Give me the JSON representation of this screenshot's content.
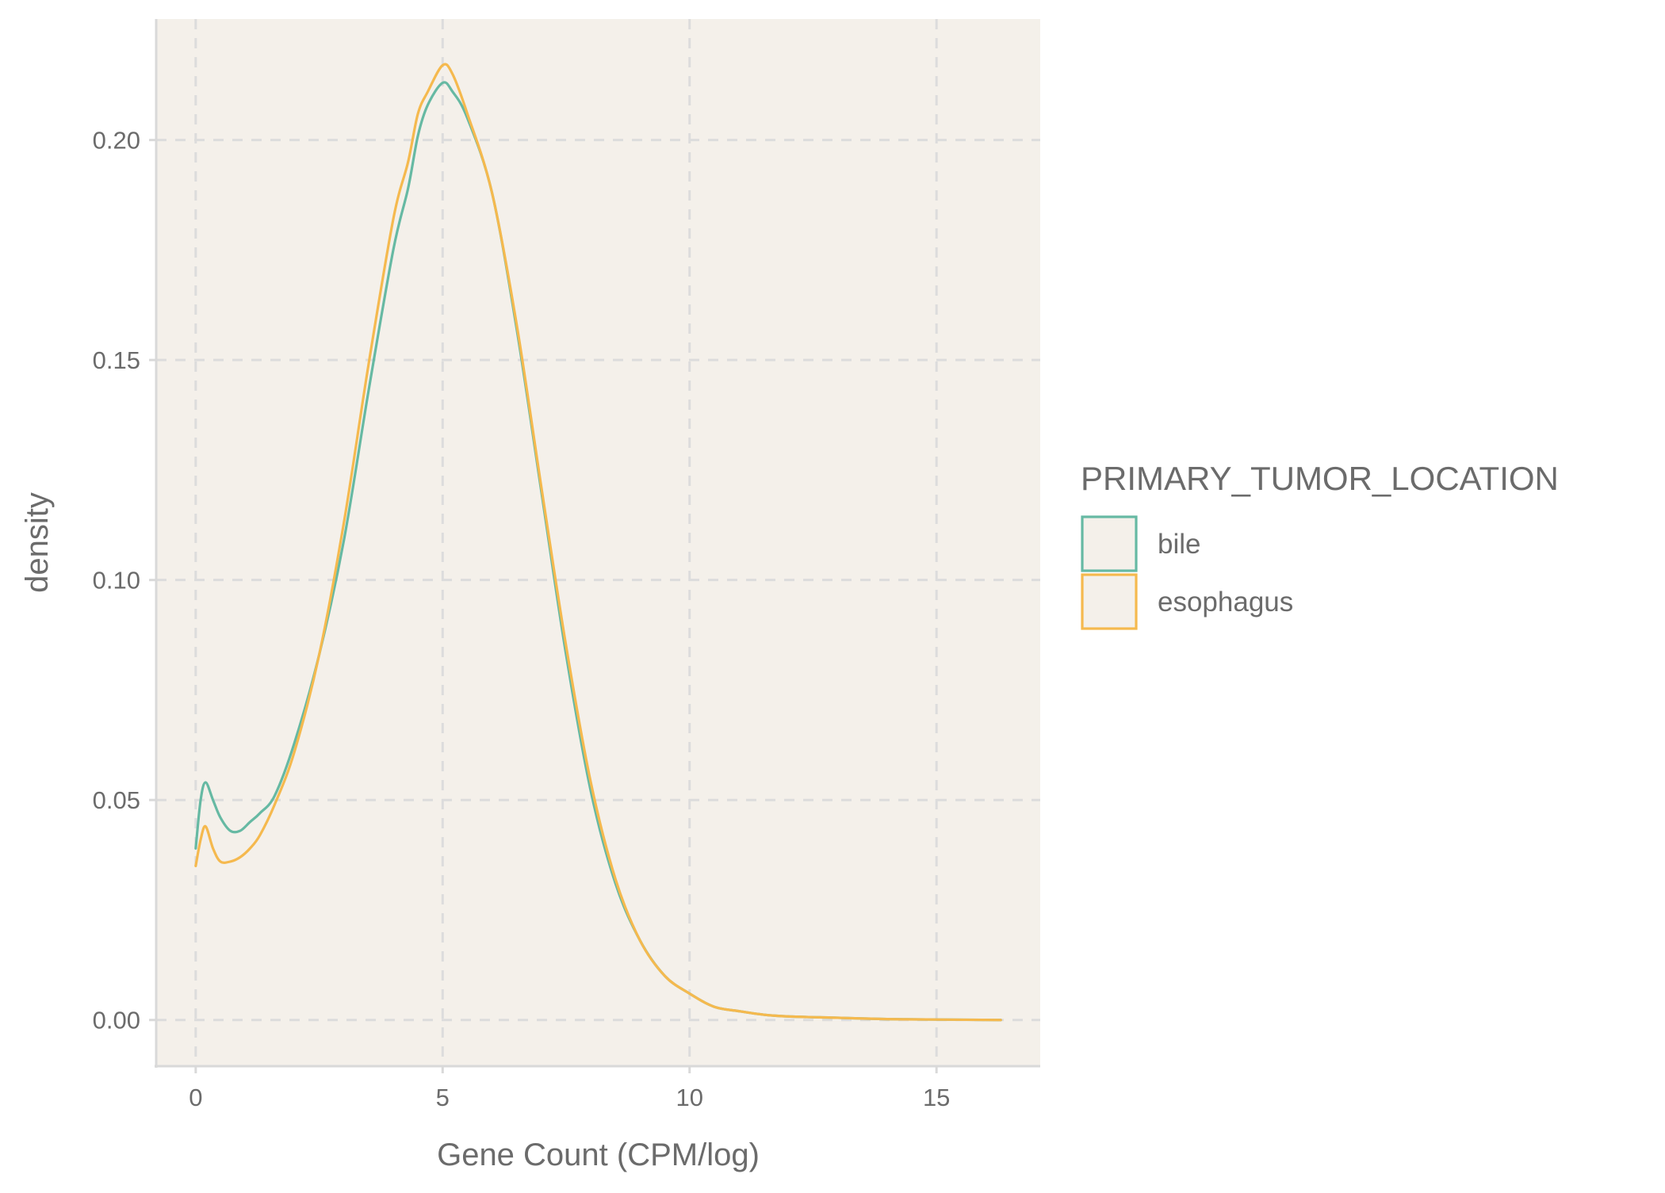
{
  "chart_data": {
    "type": "line",
    "subtype": "density",
    "title": "",
    "xlabel": "Gene Count (CPM/log)",
    "ylabel": "density",
    "xlim": [
      -0.8,
      17.1
    ],
    "ylim": [
      -0.0105,
      0.2275
    ],
    "x_ticks": [
      0,
      5,
      10,
      15
    ],
    "x_tick_labels": [
      "0",
      "5",
      "10",
      "15"
    ],
    "y_ticks": [
      0,
      0.05,
      0.1,
      0.15,
      0.2
    ],
    "y_tick_labels": [
      "0.00",
      "0.05",
      "0.10",
      "0.15",
      "0.20"
    ],
    "grid": true,
    "grid_style": "dashed",
    "panel_background": "#f4f0ea",
    "grid_color": "#dcdcdc",
    "axis_line_color": "#d9d9d9",
    "legend": {
      "title": "PRIMARY_TUMOR_LOCATION",
      "position": "right",
      "entries": [
        "bile",
        "esophagus"
      ]
    },
    "series": [
      {
        "name": "bile",
        "color": "#66b9a3",
        "x": [
          0,
          0.1,
          0.2,
          0.35,
          0.5,
          0.7,
          0.9,
          1.1,
          1.3,
          1.6,
          2.0,
          2.5,
          3.0,
          3.5,
          4.0,
          4.3,
          4.5,
          4.7,
          5.0,
          5.2,
          5.5,
          6.0,
          6.5,
          7.0,
          7.5,
          8.0,
          8.5,
          9.0,
          9.5,
          10.0,
          10.5,
          11.0,
          11.5,
          12.0,
          13.0,
          14.0,
          15.0,
          16.3
        ],
        "y": [
          0.039,
          0.05,
          0.054,
          0.05,
          0.046,
          0.043,
          0.043,
          0.045,
          0.047,
          0.051,
          0.063,
          0.083,
          0.109,
          0.143,
          0.175,
          0.189,
          0.201,
          0.208,
          0.213,
          0.211,
          0.205,
          0.188,
          0.157,
          0.12,
          0.083,
          0.052,
          0.031,
          0.018,
          0.01,
          0.006,
          0.003,
          0.002,
          0.0012,
          0.0008,
          0.0005,
          0.0002,
          0.0001,
          0.0
        ]
      },
      {
        "name": "esophagus",
        "color": "#f5b94e",
        "x": [
          0,
          0.1,
          0.2,
          0.35,
          0.5,
          0.7,
          0.9,
          1.1,
          1.3,
          1.6,
          2.0,
          2.5,
          3.0,
          3.5,
          4.0,
          4.3,
          4.5,
          4.7,
          5.0,
          5.2,
          5.5,
          6.0,
          6.5,
          7.0,
          7.5,
          8.0,
          8.5,
          9.0,
          9.5,
          10.0,
          10.5,
          11.0,
          11.5,
          12.0,
          13.0,
          14.0,
          15.0,
          16.3
        ],
        "y": [
          0.035,
          0.041,
          0.044,
          0.039,
          0.036,
          0.036,
          0.037,
          0.039,
          0.042,
          0.049,
          0.061,
          0.083,
          0.113,
          0.149,
          0.182,
          0.195,
          0.206,
          0.211,
          0.217,
          0.215,
          0.206,
          0.188,
          0.158,
          0.121,
          0.085,
          0.054,
          0.032,
          0.018,
          0.01,
          0.006,
          0.003,
          0.002,
          0.0012,
          0.0008,
          0.0005,
          0.0002,
          0.0001,
          0.0
        ]
      }
    ]
  }
}
